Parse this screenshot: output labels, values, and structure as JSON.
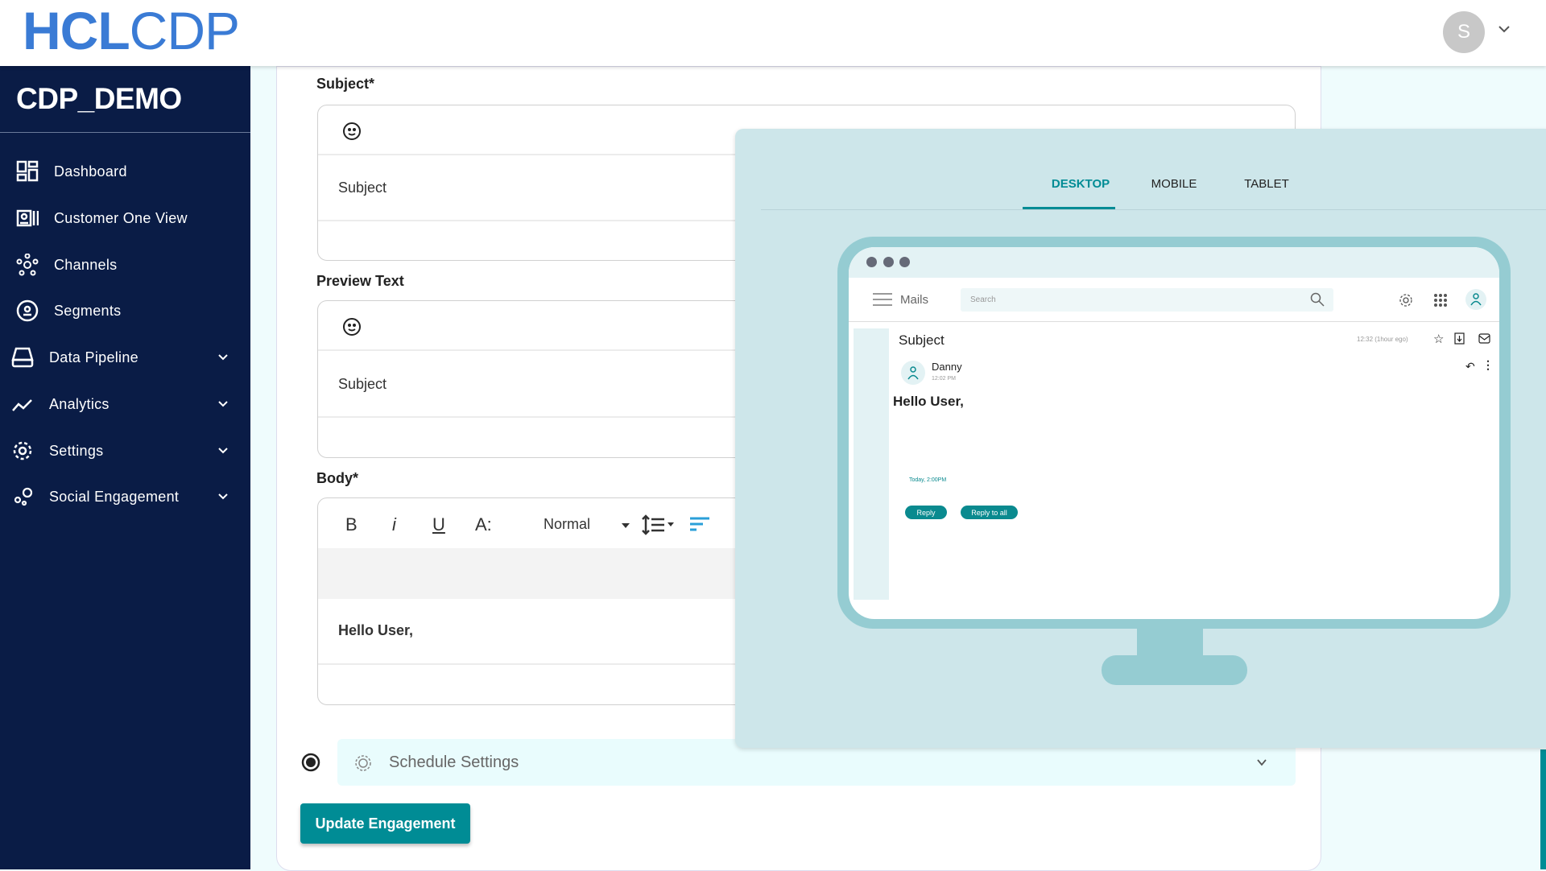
{
  "header": {
    "logo_bold": "HCL",
    "logo_light": "CDP",
    "avatar_initial": "S"
  },
  "sidebar": {
    "org": "CDP_DEMO",
    "items": [
      {
        "label": "Dashboard",
        "icon": "dashboard-icon"
      },
      {
        "label": "Customer One View",
        "icon": "customer-card-icon"
      },
      {
        "label": "Channels",
        "icon": "channels-icon"
      },
      {
        "label": "Segments",
        "icon": "segments-icon"
      },
      {
        "label": "Data Pipeline",
        "icon": "drive-icon",
        "expandable": true
      },
      {
        "label": "Analytics",
        "icon": "analytics-icon",
        "expandable": true
      },
      {
        "label": "Settings",
        "icon": "gear-icon",
        "expandable": true
      },
      {
        "label": "Social Engagement",
        "icon": "social-icon",
        "expandable": true
      }
    ]
  },
  "form": {
    "subject_label": "Subject*",
    "subject_value": "Subject",
    "preview_label": "Preview Text",
    "preview_value": "Subject",
    "body_label": "Body*",
    "body_toolbar": {
      "bold": "B",
      "italic": "i",
      "underline": "U",
      "font_size": "A:",
      "format": "Normal"
    },
    "body_value": "Hello User,",
    "schedule_label": "Schedule Settings",
    "update_button": "Update Engagement"
  },
  "preview": {
    "tabs": [
      "DESKTOP",
      "MOBILE",
      "TABLET"
    ],
    "active_tab": "DESKTOP",
    "accent": "#008c95",
    "mail": {
      "app": "Mails",
      "search_placeholder": "Search",
      "subject": "Subject",
      "timestamp": "12:32 (1hour ego)",
      "sender": "Danny",
      "sent_time": "12:02 PM",
      "greeting": "Hello User,",
      "date": "Today, 2:00PM",
      "reply": "Reply",
      "reply_all": "Reply to all"
    }
  }
}
